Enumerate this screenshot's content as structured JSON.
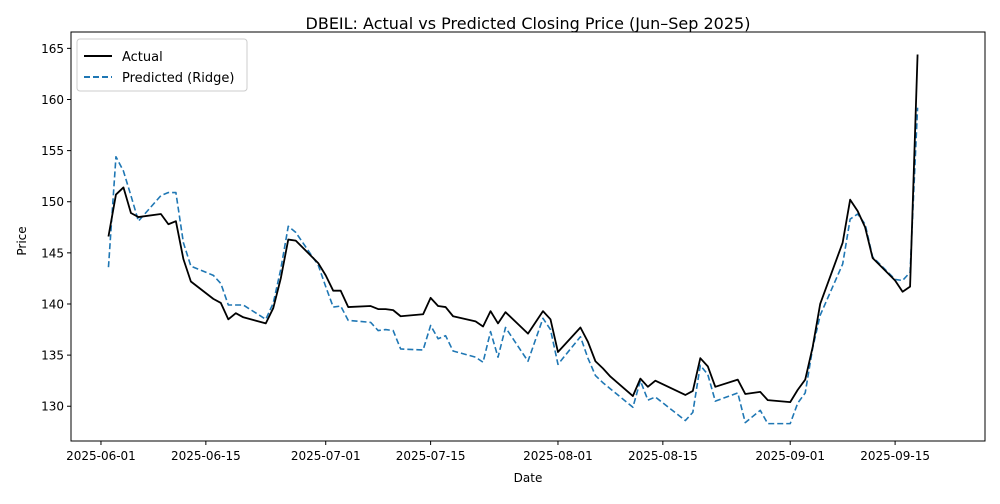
{
  "chart_data": {
    "type": "line",
    "title": "DBEIL: Actual vs Predicted Closing Price (Jun–Sep 2025)",
    "xlabel": "Date",
    "ylabel": "Price",
    "x_ticks": [
      "2025-06-01",
      "2025-06-15",
      "2025-07-01",
      "2025-07-15",
      "2025-08-01",
      "2025-08-15",
      "2025-09-01",
      "2025-09-15"
    ],
    "y_ticks": [
      130,
      135,
      140,
      145,
      150,
      155,
      160,
      165
    ],
    "xlim": [
      "2025-05-28",
      "2025-09-27"
    ],
    "ylim": [
      126.6,
      166.6
    ],
    "grid": false,
    "legend_position": "upper-left",
    "x": [
      "2025-06-02",
      "2025-06-03",
      "2025-06-04",
      "2025-06-05",
      "2025-06-06",
      "2025-06-09",
      "2025-06-10",
      "2025-06-11",
      "2025-06-12",
      "2025-06-13",
      "2025-06-16",
      "2025-06-17",
      "2025-06-18",
      "2025-06-19",
      "2025-06-20",
      "2025-06-23",
      "2025-06-24",
      "2025-06-25",
      "2025-06-26",
      "2025-06-27",
      "2025-06-30",
      "2025-07-01",
      "2025-07-02",
      "2025-07-03",
      "2025-07-04",
      "2025-07-07",
      "2025-07-08",
      "2025-07-09",
      "2025-07-10",
      "2025-07-11",
      "2025-07-14",
      "2025-07-15",
      "2025-07-16",
      "2025-07-17",
      "2025-07-18",
      "2025-07-21",
      "2025-07-22",
      "2025-07-23",
      "2025-07-24",
      "2025-07-25",
      "2025-07-28",
      "2025-07-29",
      "2025-07-30",
      "2025-07-31",
      "2025-08-01",
      "2025-08-04",
      "2025-08-05",
      "2025-08-06",
      "2025-08-07",
      "2025-08-08",
      "2025-08-11",
      "2025-08-12",
      "2025-08-13",
      "2025-08-14",
      "2025-08-18",
      "2025-08-19",
      "2025-08-20",
      "2025-08-21",
      "2025-08-22",
      "2025-08-25",
      "2025-08-26",
      "2025-08-28",
      "2025-08-29",
      "2025-09-01",
      "2025-09-02",
      "2025-09-03",
      "2025-09-04",
      "2025-09-05",
      "2025-09-08",
      "2025-09-09",
      "2025-09-10",
      "2025-09-11",
      "2025-09-12",
      "2025-09-15",
      "2025-09-16",
      "2025-09-17",
      "2025-09-18"
    ],
    "series": [
      {
        "name": "Actual",
        "color": "#000000",
        "style": "solid",
        "values": [
          146.6,
          150.7,
          151.4,
          148.9,
          148.5,
          148.8,
          147.8,
          148.1,
          144.4,
          142.2,
          140.5,
          140.1,
          138.5,
          139.1,
          138.7,
          138.1,
          139.6,
          142.5,
          146.3,
          146.2,
          144.0,
          142.8,
          141.3,
          141.3,
          139.7,
          139.8,
          139.5,
          139.5,
          139.4,
          138.8,
          139.0,
          140.6,
          139.8,
          139.7,
          138.8,
          138.3,
          137.8,
          139.3,
          138.1,
          139.2,
          137.1,
          138.2,
          139.3,
          138.5,
          135.3,
          137.7,
          136.3,
          134.4,
          133.7,
          132.9,
          131.0,
          132.7,
          131.9,
          132.5,
          131.1,
          131.5,
          134.7,
          133.9,
          131.9,
          132.6,
          131.2,
          131.4,
          130.6,
          130.4,
          131.6,
          132.6,
          135.8,
          140.0,
          146.0,
          150.2,
          149.1,
          147.5,
          144.5,
          142.3,
          141.2,
          141.7,
          164.4
        ]
      },
      {
        "name": "Predicted (Ridge)",
        "color": "#1f77b4",
        "style": "dashed",
        "values": [
          143.6,
          154.4,
          153.0,
          150.6,
          148.1,
          150.6,
          150.9,
          150.9,
          146.0,
          143.7,
          142.8,
          142.0,
          139.9,
          139.9,
          139.9,
          138.5,
          140.1,
          143.4,
          147.6,
          147.0,
          143.8,
          141.7,
          139.7,
          139.8,
          138.4,
          138.2,
          137.4,
          137.5,
          137.4,
          135.6,
          135.5,
          137.9,
          136.6,
          136.9,
          135.4,
          134.8,
          134.3,
          137.3,
          134.8,
          137.7,
          134.4,
          136.5,
          138.6,
          137.5,
          134.1,
          136.8,
          134.7,
          133.0,
          132.3,
          131.7,
          129.9,
          132.5,
          130.6,
          130.9,
          128.6,
          129.4,
          134.0,
          133.1,
          130.5,
          131.3,
          128.4,
          129.6,
          128.3,
          128.3,
          130.3,
          131.3,
          135.7,
          138.9,
          143.9,
          148.3,
          148.8,
          147.8,
          144.6,
          142.4,
          142.3,
          143.1,
          159.2
        ]
      }
    ]
  }
}
